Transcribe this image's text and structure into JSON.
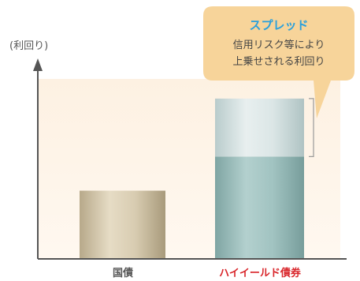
{
  "chart_data": {
    "type": "bar",
    "ylabel": "(利回り)",
    "categories": [
      "国債",
      "ハイイールド債券"
    ],
    "values": [
      2.0,
      3.0
    ],
    "spread_top": 4.7,
    "ylim": [
      0,
      5.6
    ],
    "grid": false,
    "callout": {
      "title": "スプレッド",
      "lines": [
        "信用リスク等により",
        "上乗せされる利回り"
      ]
    },
    "colors": {
      "govt_bar": "#cbbd9f",
      "hy_bar": "#94b9b7",
      "spread_bar": "#c9d9d8",
      "callout_bg": "#f7d49a",
      "callout_title": "#2aa0dc",
      "category_govt": "#555555",
      "category_hy": "#d9262b",
      "plot_bg": "#fdf1e2"
    }
  }
}
